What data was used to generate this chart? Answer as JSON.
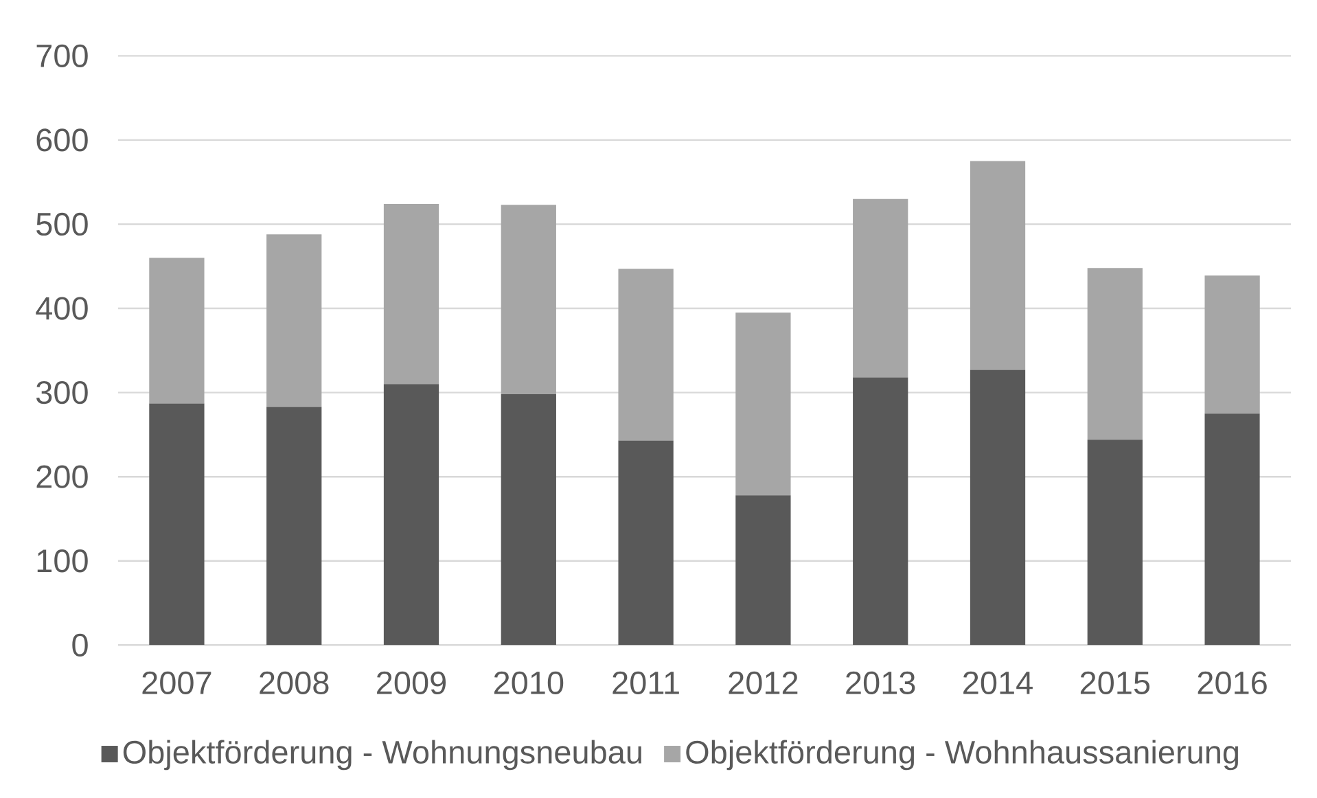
{
  "chart_data": {
    "type": "bar",
    "stacked": true,
    "categories": [
      "2007",
      "2008",
      "2009",
      "2010",
      "2011",
      "2012",
      "2013",
      "2014",
      "2015",
      "2016"
    ],
    "series": [
      {
        "name": "Objektförderung - Wohnungsneubau",
        "color": "#595959",
        "values": [
          287,
          283,
          310,
          298,
          243,
          178,
          318,
          327,
          244,
          275
        ]
      },
      {
        "name": "Objektförderung - Wohnhaussanierung",
        "color": "#a6a6a6",
        "values": [
          173,
          205,
          214,
          225,
          204,
          217,
          212,
          248,
          204,
          164
        ]
      }
    ],
    "ylim": [
      0,
      700
    ],
    "yticks": [
      0,
      100,
      200,
      300,
      400,
      500,
      600,
      700
    ],
    "grid": "y",
    "legend": "bottom"
  }
}
